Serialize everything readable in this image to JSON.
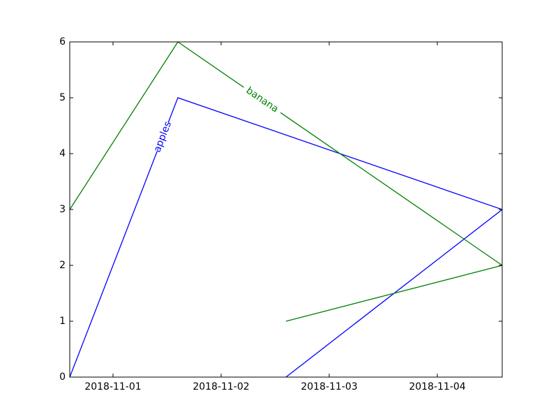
{
  "chart_data": {
    "type": "line",
    "title": "",
    "xlabel": "",
    "ylabel": "",
    "x_tick_labels": [
      "2018-11-01",
      "2018-11-02",
      "2018-11-03",
      "2018-11-04"
    ],
    "x_tick_values": [
      "2018-11-01",
      "2018-11-02",
      "2018-11-03",
      "2018-11-04"
    ],
    "xlim": [
      "2018-10-31T14:24",
      "2018-11-04T14:24"
    ],
    "ylim": [
      0,
      6
    ],
    "y_ticks": [
      0,
      1,
      2,
      3,
      4,
      5,
      6
    ],
    "grid": false,
    "series": [
      {
        "name": "apples",
        "color": "#0000ff",
        "label_position": "on the rising segment",
        "points": [
          {
            "x": "2018-10-31T14:24",
            "y": 0
          },
          {
            "x": "2018-11-01T14:24",
            "y": 5
          },
          {
            "x": "2018-11-04T14:24",
            "y": 3
          },
          {
            "x": "2018-11-02T14:24",
            "y": 0
          }
        ]
      },
      {
        "name": "banana",
        "color": "#008000",
        "label_position": "on the falling segment",
        "points": [
          {
            "x": "2018-10-31T14:24",
            "y": 3
          },
          {
            "x": "2018-11-01T14:24",
            "y": 6
          },
          {
            "x": "2018-11-04T14:24",
            "y": 2
          },
          {
            "x": "2018-11-02T14:24",
            "y": 1
          }
        ]
      }
    ]
  }
}
